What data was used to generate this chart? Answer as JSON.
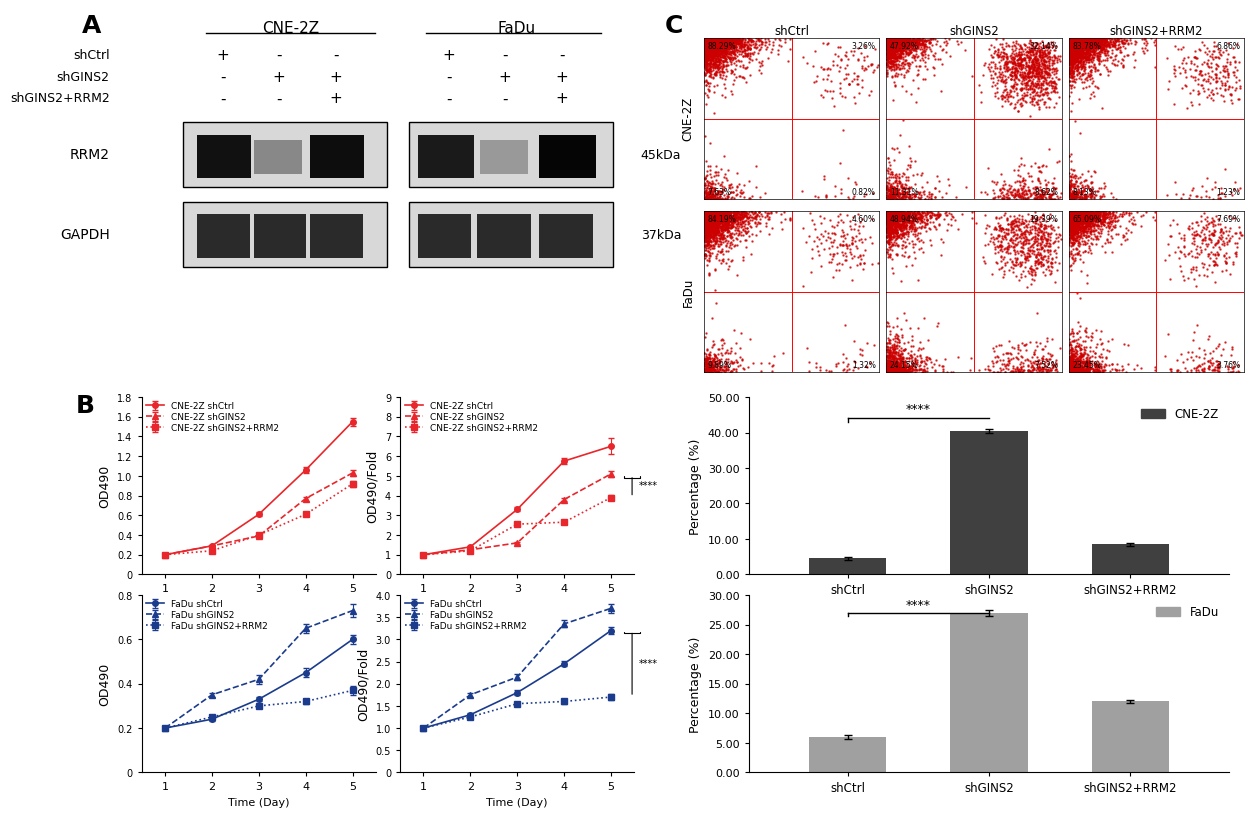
{
  "panel_B": {
    "cne2z_od490": {
      "shCtrl": [
        0.2,
        0.29,
        0.61,
        1.06,
        1.55
      ],
      "shGINS2": [
        0.2,
        0.29,
        0.39,
        0.77,
        1.03
      ],
      "shGINS2_RRM2": [
        0.2,
        0.24,
        0.4,
        0.61,
        0.92
      ]
    },
    "cne2z_fold": {
      "shCtrl": [
        1.0,
        1.4,
        3.3,
        5.75,
        6.5
      ],
      "shGINS2": [
        1.0,
        1.25,
        1.6,
        3.8,
        5.1
      ],
      "shGINS2_RRM2": [
        1.0,
        1.2,
        2.55,
        2.65,
        3.9
      ]
    },
    "fadu_od490": {
      "shCtrl": [
        0.2,
        0.24,
        0.33,
        0.45,
        0.6
      ],
      "shGINS2": [
        0.2,
        0.35,
        0.42,
        0.65,
        0.73
      ],
      "shGINS2_RRM2": [
        0.2,
        0.25,
        0.3,
        0.32,
        0.37
      ]
    },
    "fadu_fold": {
      "shCtrl": [
        1.0,
        1.3,
        1.8,
        2.45,
        3.2
      ],
      "shGINS2": [
        1.0,
        1.75,
        2.15,
        3.35,
        3.7
      ],
      "shGINS2_RRM2": [
        1.0,
        1.25,
        1.55,
        1.6,
        1.7
      ]
    },
    "cne2z_od490_err": {
      "shCtrl": [
        0.005,
        0.01,
        0.02,
        0.03,
        0.04
      ],
      "shGINS2": [
        0.005,
        0.01,
        0.02,
        0.02,
        0.03
      ],
      "shGINS2_RRM2": [
        0.005,
        0.01,
        0.02,
        0.02,
        0.03
      ]
    },
    "cne2z_fold_err": {
      "shCtrl": [
        0.02,
        0.05,
        0.1,
        0.15,
        0.4
      ],
      "shGINS2": [
        0.02,
        0.04,
        0.07,
        0.1,
        0.15
      ],
      "shGINS2_RRM2": [
        0.02,
        0.03,
        0.06,
        0.08,
        0.12
      ]
    },
    "fadu_od490_err": {
      "shCtrl": [
        0.005,
        0.01,
        0.01,
        0.02,
        0.02
      ],
      "shGINS2": [
        0.005,
        0.01,
        0.02,
        0.02,
        0.03
      ],
      "shGINS2_RRM2": [
        0.005,
        0.01,
        0.01,
        0.01,
        0.02
      ]
    },
    "fadu_fold_err": {
      "shCtrl": [
        0.02,
        0.04,
        0.05,
        0.06,
        0.08
      ],
      "shGINS2": [
        0.02,
        0.05,
        0.07,
        0.08,
        0.1
      ],
      "shGINS2_RRM2": [
        0.02,
        0.03,
        0.04,
        0.05,
        0.06
      ]
    },
    "days": [
      1,
      2,
      3,
      4,
      5
    ],
    "red_color": "#E8262B",
    "blue_color": "#1B3C8C"
  },
  "panel_C_bars": {
    "cne2z": {
      "values": [
        4.5,
        40.5,
        8.5
      ],
      "errors": [
        0.3,
        0.5,
        0.4
      ],
      "color": "#404040",
      "ylim": [
        0,
        50
      ],
      "yticks": [
        0,
        10,
        20,
        30,
        40,
        50
      ],
      "yticklabels": [
        "0.00",
        "10.00",
        "20.00",
        "30.00",
        "40.00",
        "50.00"
      ],
      "label": "CNE-2Z"
    },
    "fadu": {
      "values": [
        6.0,
        27.0,
        12.0
      ],
      "errors": [
        0.4,
        0.5,
        0.3
      ],
      "color": "#A0A0A0",
      "ylim": [
        0,
        30
      ],
      "yticks": [
        0,
        5,
        10,
        15,
        20,
        25,
        30
      ],
      "yticklabels": [
        "0.00",
        "5.00",
        "10.00",
        "15.00",
        "20.00",
        "25.00",
        "30.00"
      ],
      "label": "FaDu"
    },
    "categories": [
      "shCtrl",
      "shGINS2",
      "shGINS2+RRM2"
    ]
  },
  "fc_data": [
    [
      {
        "UL": "88.29",
        "UR": "3.26",
        "LL": "7.63",
        "LR": "0.82"
      },
      {
        "UL": "47.92",
        "UR": "32.14",
        "LL": "11.31",
        "LR": "8.62"
      },
      {
        "UL": "83.78",
        "UR": "6.86",
        "LL": "8.13",
        "LR": "1.23"
      }
    ],
    [
      {
        "UL": "84.19",
        "UR": "4.60",
        "LL": "9.89",
        "LR": "1.32"
      },
      {
        "UL": "48.94",
        "UR": "19.39",
        "LL": "24.15",
        "LR": "7.52"
      },
      {
        "UL": "65.09",
        "UR": "7.69",
        "LL": "23.45",
        "LR": "3.76"
      }
    ]
  ],
  "significance": "****",
  "wb_A_labels": [
    "shCtrl",
    "shGINS2",
    "shGINS2+RRM2"
  ],
  "wb_signs_cne": [
    [
      "+",
      "-",
      "-"
    ],
    [
      "-",
      "+",
      "+"
    ],
    [
      "-",
      "-",
      "+"
    ]
  ],
  "wb_signs_fadu": [
    [
      "+",
      "-",
      "-"
    ],
    [
      "-",
      "+",
      "+"
    ],
    [
      "-",
      "-",
      "+"
    ]
  ]
}
